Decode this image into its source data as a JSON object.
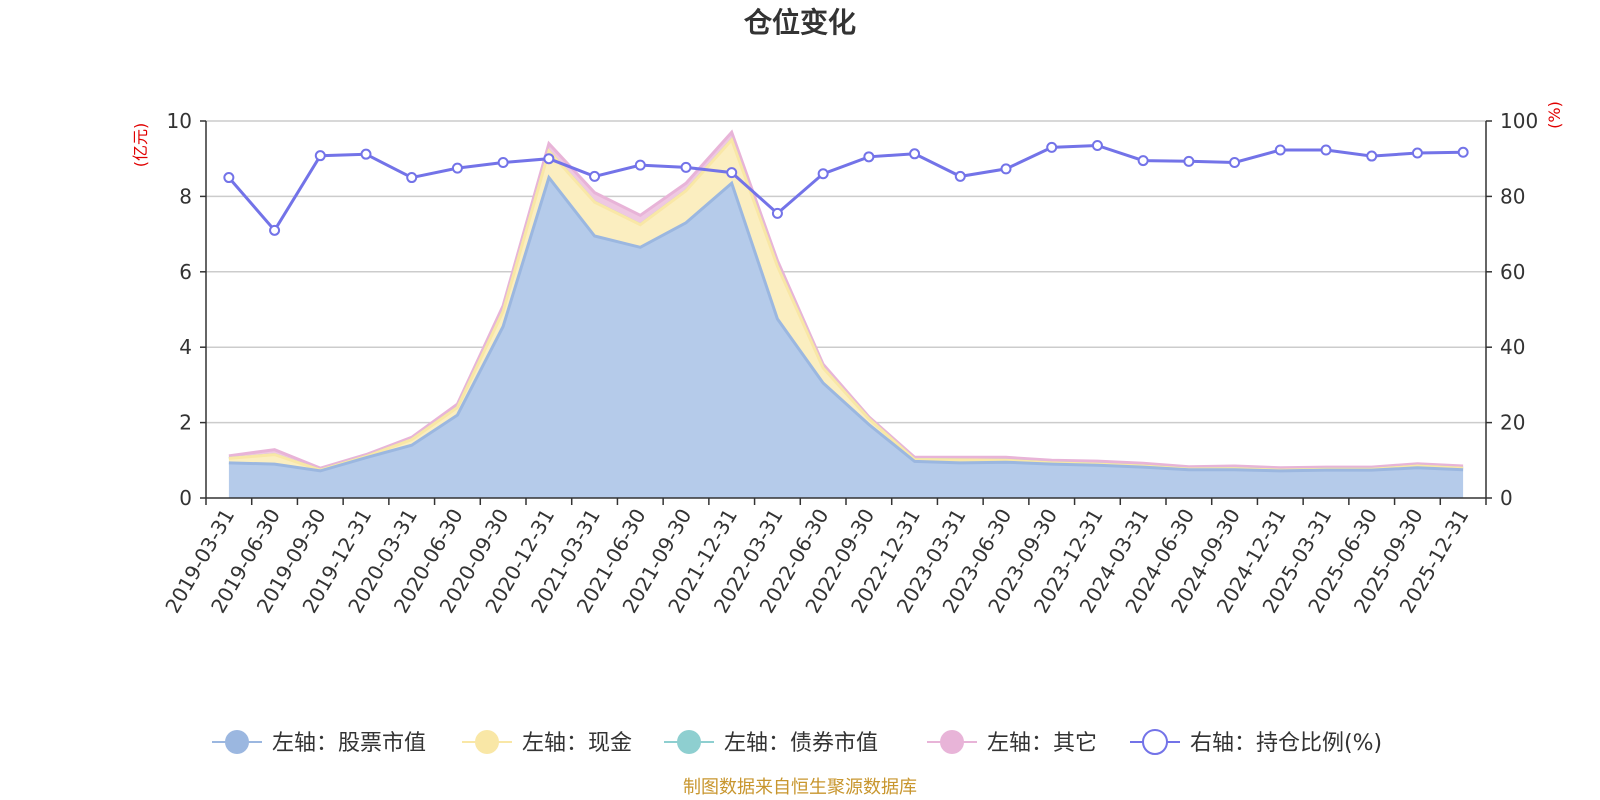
{
  "chart_data": {
    "type": "area",
    "title": "仓位变化",
    "footer": "制图数据来自恒生聚源数据库",
    "left_axis": {
      "unit": "(亿元)",
      "min": 0,
      "max": 10,
      "ticks": [
        0,
        2,
        4,
        6,
        8,
        10
      ]
    },
    "right_axis": {
      "unit": "(%)",
      "min": 0,
      "max": 100,
      "ticks": [
        0,
        20,
        40,
        60,
        80,
        100
      ]
    },
    "categories": [
      "2019-03-31",
      "2019-06-30",
      "2019-09-30",
      "2019-12-31",
      "2020-03-31",
      "2020-06-30",
      "2020-09-30",
      "2020-12-31",
      "2021-03-31",
      "2021-06-30",
      "2021-09-30",
      "2021-12-31",
      "2022-03-31",
      "2022-06-30",
      "2022-09-30",
      "2022-12-31",
      "2023-03-31",
      "2023-06-30",
      "2023-09-30",
      "2023-12-31",
      "2024-03-31",
      "2024-06-30",
      "2024-09-30",
      "2024-12-31",
      "2025-03-31",
      "2025-06-30",
      "2025-09-30",
      "2025-12-31"
    ],
    "series": [
      {
        "name": "左轴：股票市值",
        "axis": "left",
        "color": "#9bb7e0",
        "fill": "#b5cbea",
        "values": [
          0.93,
          0.9,
          0.72,
          1.07,
          1.4,
          2.2,
          4.55,
          8.5,
          6.95,
          6.65,
          7.3,
          8.35,
          4.75,
          3.05,
          1.95,
          0.97,
          0.93,
          0.95,
          0.9,
          0.87,
          0.82,
          0.75,
          0.75,
          0.72,
          0.74,
          0.74,
          0.8,
          0.75
        ]
      },
      {
        "name": "左轴：现金",
        "axis": "left",
        "color": "#f9e7a6",
        "fill": "#fbeec0",
        "values": [
          0.12,
          0.25,
          0.02,
          0.03,
          0.15,
          0.2,
          0.4,
          0.7,
          0.9,
          0.6,
          0.85,
          1.15,
          1.4,
          0.4,
          0.15,
          0.05,
          0.08,
          0.05,
          0.03,
          0.03,
          0.03,
          0.02,
          0.03,
          0.02,
          0.02,
          0.02,
          0.05,
          0.04
        ]
      },
      {
        "name": "左轴：债券市值",
        "axis": "left",
        "color": "#8ecfd0",
        "fill": "#a8dbdb",
        "values": [
          0,
          0,
          0,
          0,
          0,
          0,
          0,
          0,
          0,
          0,
          0,
          0,
          0,
          0,
          0,
          0,
          0,
          0,
          0,
          0,
          0,
          0,
          0,
          0,
          0,
          0,
          0,
          0
        ]
      },
      {
        "name": "左轴：其它",
        "axis": "left",
        "color": "#e8b4d8",
        "fill": "#efc8e2",
        "values": [
          0.07,
          0.13,
          0.05,
          0.05,
          0.06,
          0.09,
          0.15,
          0.2,
          0.25,
          0.25,
          0.2,
          0.2,
          0.15,
          0.1,
          0.05,
          0.06,
          0.07,
          0.08,
          0.07,
          0.08,
          0.07,
          0.06,
          0.07,
          0.06,
          0.06,
          0.06,
          0.06,
          0.06
        ]
      },
      {
        "name": "右轴：持仓比例(%)",
        "axis": "right",
        "color": "#7373e8",
        "values": [
          85.0,
          71.0,
          90.8,
          91.2,
          85.0,
          87.5,
          89.0,
          90.0,
          85.3,
          88.3,
          87.7,
          86.3,
          75.5,
          86.0,
          90.5,
          91.3,
          85.3,
          87.3,
          93.0,
          93.5,
          89.5,
          89.3,
          89.0,
          92.3,
          92.3,
          90.7,
          91.5,
          91.7
        ]
      }
    ]
  }
}
